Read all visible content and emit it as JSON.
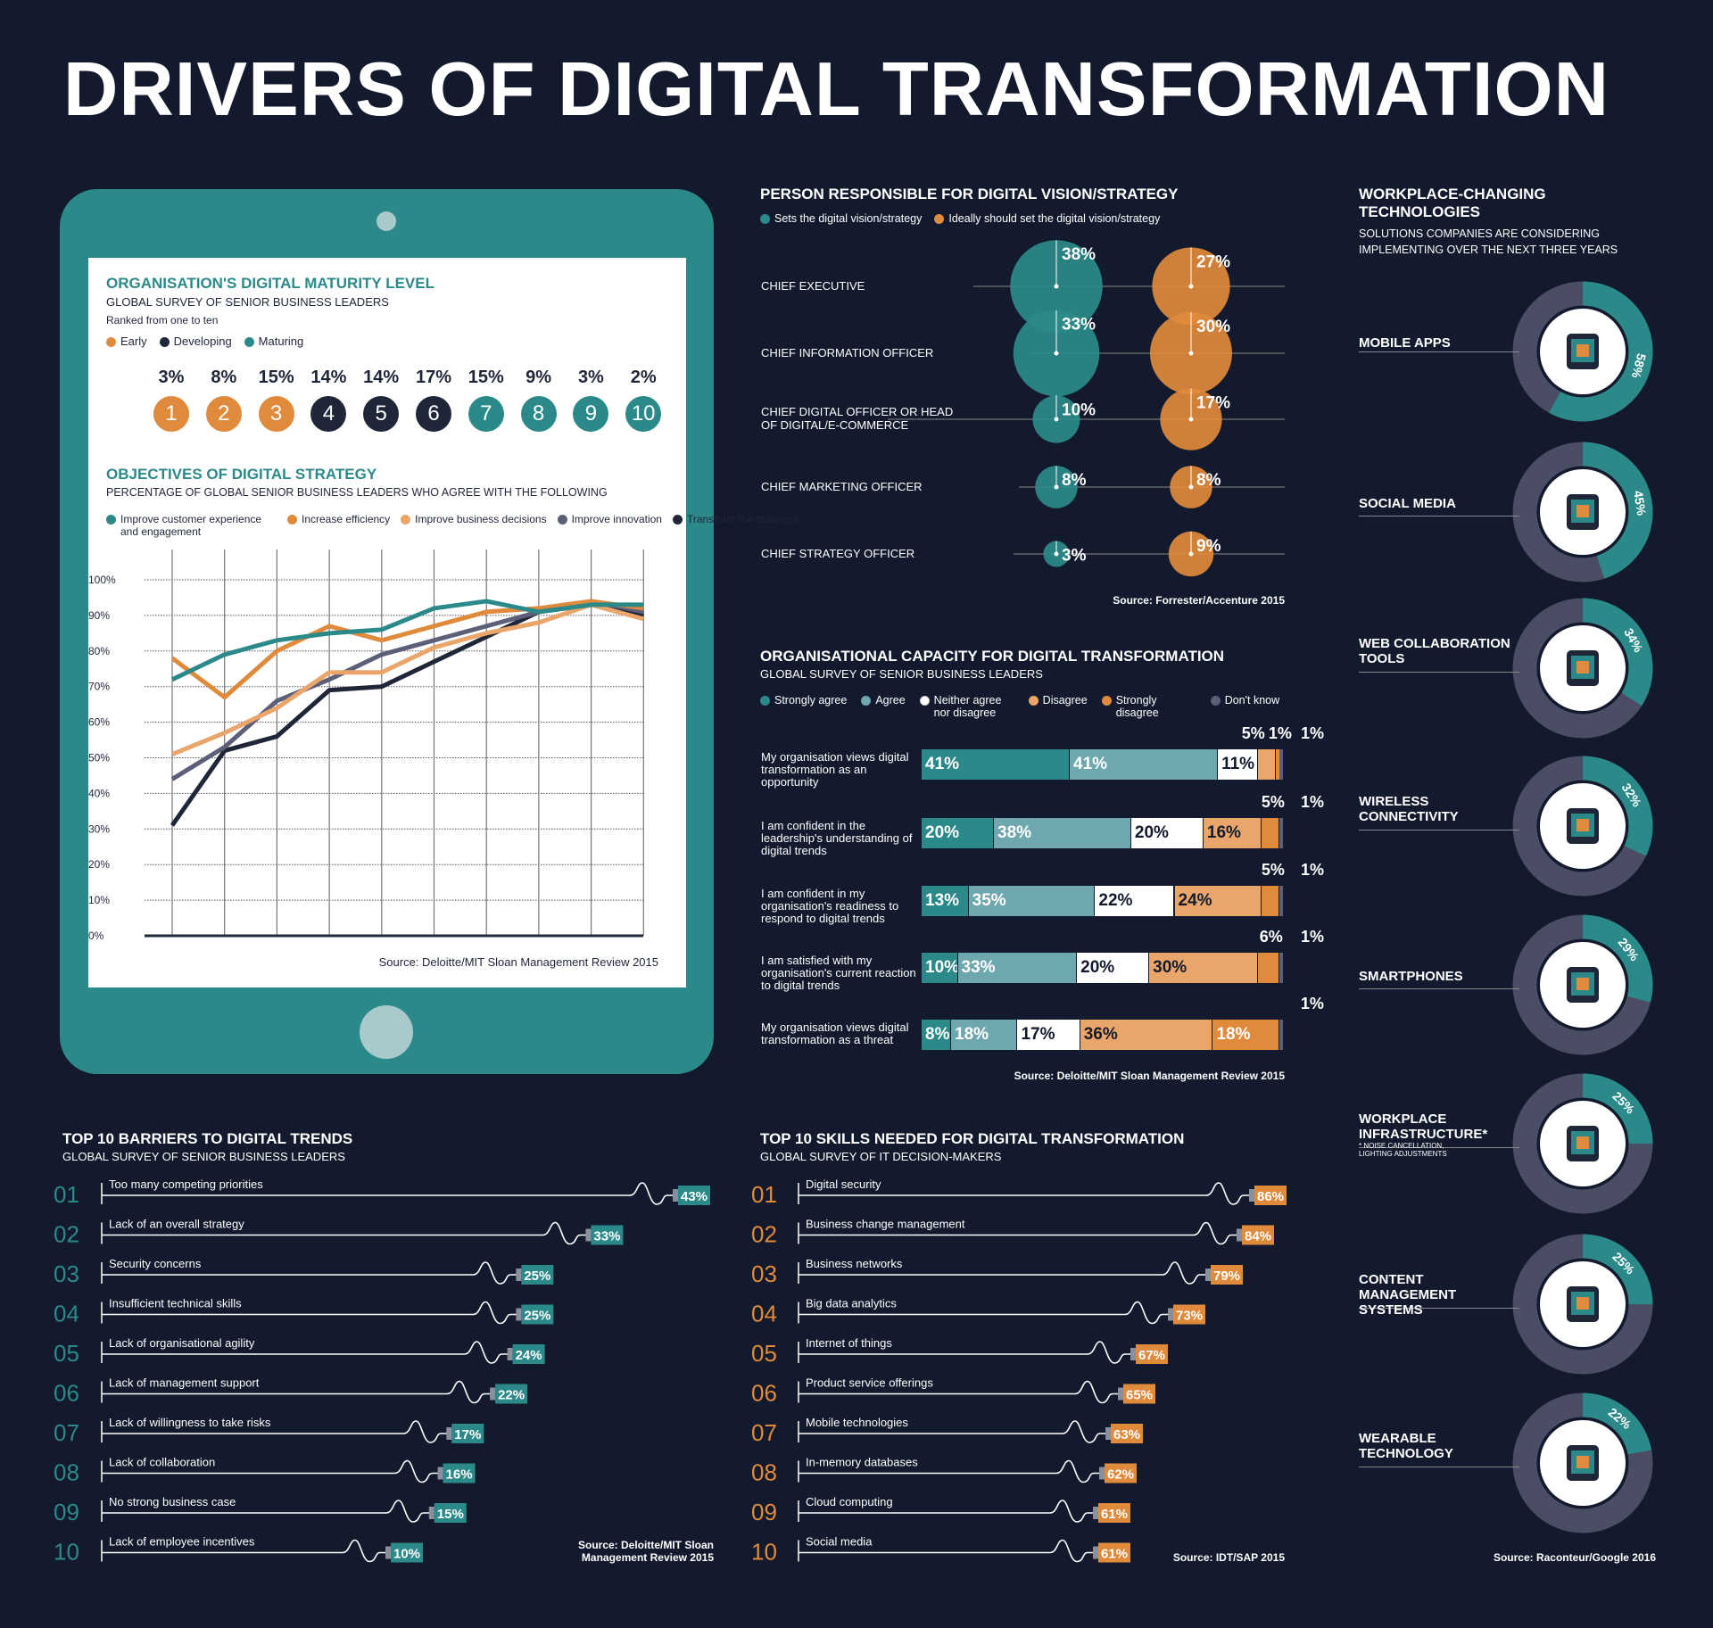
{
  "title": "DRIVERS OF DIGITAL TRANSFORMATION",
  "colors": {
    "background": "#131a2d",
    "teal": "#2b8a89",
    "orange": "#e08a3c",
    "light_orange": "#eaa66a",
    "light_teal": "#6fa7ae",
    "gray": "#5c5f78",
    "navy": "#1f2638"
  },
  "maturity": {
    "title": "ORGANISATION'S DIGITAL MATURITY LEVEL",
    "subtitle": "GLOBAL SURVEY OF SENIOR BUSINESS LEADERS",
    "note": "Ranked from one to ten",
    "legend": [
      {
        "label": "Early",
        "color": "#e08a3c"
      },
      {
        "label": "Developing",
        "color": "#1f2638"
      },
      {
        "label": "Maturing",
        "color": "#2b8a89"
      }
    ],
    "levels": [
      {
        "n": "1",
        "pct": "3%",
        "g": 0
      },
      {
        "n": "2",
        "pct": "8%",
        "g": 0
      },
      {
        "n": "3",
        "pct": "15%",
        "g": 0
      },
      {
        "n": "4",
        "pct": "14%",
        "g": 1
      },
      {
        "n": "5",
        "pct": "14%",
        "g": 1
      },
      {
        "n": "6",
        "pct": "17%",
        "g": 1
      },
      {
        "n": "7",
        "pct": "15%",
        "g": 2
      },
      {
        "n": "8",
        "pct": "9%",
        "g": 2
      },
      {
        "n": "9",
        "pct": "3%",
        "g": 2
      },
      {
        "n": "10",
        "pct": "2%",
        "g": 2
      }
    ]
  },
  "chart_data": [
    {
      "type": "line",
      "title": "OBJECTIVES OF DIGITAL STRATEGY",
      "subtitle": "PERCENTAGE OF GLOBAL SENIOR BUSINESS LEADERS WHO AGREE WITH THE FOLLOWING",
      "x": [
        1,
        2,
        3,
        4,
        5,
        6,
        7,
        8,
        9,
        10
      ],
      "ylim": [
        0,
        100
      ],
      "yticks": [
        "0%",
        "10%",
        "20%",
        "30%",
        "40%",
        "50%",
        "60%",
        "70%",
        "80%",
        "90%",
        "100%"
      ],
      "grid": true,
      "legend_position": "top",
      "series": [
        {
          "name": "Improve customer experience and engagement",
          "color": "#2b8a89",
          "values": [
            72,
            79,
            83,
            85,
            86,
            92,
            94,
            91,
            93,
            93
          ]
        },
        {
          "name": "Increase efficiency",
          "color": "#e08a3c",
          "values": [
            78,
            67,
            80,
            87,
            83,
            87,
            91,
            92,
            94,
            92
          ]
        },
        {
          "name": "Improve business decisions",
          "color": "#eaa66a",
          "values": [
            51,
            57,
            64,
            74,
            74,
            81,
            85,
            88,
            93,
            89
          ]
        },
        {
          "name": "Improve innovation",
          "color": "#5c5f78",
          "values": [
            44,
            53,
            66,
            72,
            79,
            83,
            87,
            91,
            94,
            91
          ]
        },
        {
          "name": "Transform the business",
          "color": "#1f2638",
          "values": [
            31,
            52,
            56,
            69,
            70,
            77,
            84,
            91,
            93,
            90
          ]
        }
      ],
      "source": "Source: Deloitte/MIT Sloan Management Review 2015"
    },
    {
      "type": "scatter",
      "title": "PERSON RESPONSIBLE FOR DIGITAL VISION/STRATEGY",
      "series_names": [
        "Sets the digital vision/strategy",
        "Ideally should set the digital vision/strategy"
      ],
      "rows": [
        {
          "label": "CHIEF EXECUTIVE",
          "a": 38,
          "b": 27
        },
        {
          "label": "CHIEF INFORMATION OFFICER",
          "a": 33,
          "b": 30
        },
        {
          "label": "CHIEF DIGITAL OFFICER OR HEAD OF DIGITAL/E-COMMERCE",
          "a": 10,
          "b": 17
        },
        {
          "label": "CHIEF MARKETING OFFICER",
          "a": 8,
          "b": 8
        },
        {
          "label": "CHIEF STRATEGY OFFICER",
          "a": 3,
          "b": 9
        }
      ],
      "source": "Source: Forrester/Accenture 2015"
    },
    {
      "type": "bar",
      "stacked": true,
      "title": "ORGANISATIONAL CAPACITY FOR DIGITAL TRANSFORMATION",
      "subtitle": "GLOBAL SURVEY OF SENIOR BUSINESS LEADERS",
      "legend": [
        {
          "label": "Strongly agree",
          "color": "#2b8a89"
        },
        {
          "label": "Agree",
          "color": "#6fa7ae"
        },
        {
          "label": "Neither agree nor disagree",
          "color": "#ffffff"
        },
        {
          "label": "Disagree",
          "color": "#eaa66a"
        },
        {
          "label": "Strongly disagree",
          "color": "#e08a3c"
        },
        {
          "label": "Don't know",
          "color": "#5c5f78"
        }
      ],
      "rows": [
        {
          "label": "My organisation views digital transformation as an opportunity",
          "values": [
            41,
            41,
            11,
            5,
            1,
            1
          ]
        },
        {
          "label": "I am confident in the leadership's understanding of digital trends",
          "values": [
            20,
            38,
            20,
            16,
            5,
            1
          ]
        },
        {
          "label": "I am confident in my organisation's readiness to respond to digital trends",
          "values": [
            13,
            35,
            22,
            24,
            5,
            1
          ]
        },
        {
          "label": "I am satisfied with my organisation's current reaction to digital trends",
          "values": [
            10,
            33,
            20,
            30,
            6,
            1
          ]
        },
        {
          "label": "My organisation views digital transformation as a threat",
          "values": [
            8,
            18,
            17,
            36,
            18,
            1
          ]
        }
      ],
      "source": "Source: Deloitte/MIT Sloan Management Review 2015"
    },
    {
      "type": "bar",
      "title": "TOP 10 BARRIERS TO DIGITAL TRENDS",
      "subtitle": "GLOBAL SURVEY OF SENIOR BUSINESS LEADERS",
      "rows": [
        {
          "n": "01",
          "label": "Too many competing priorities",
          "v": 43
        },
        {
          "n": "02",
          "label": "Lack of an overall strategy",
          "v": 33
        },
        {
          "n": "03",
          "label": "Security concerns",
          "v": 25
        },
        {
          "n": "04",
          "label": "Insufficient technical skills",
          "v": 25
        },
        {
          "n": "05",
          "label": "Lack of organisational agility",
          "v": 24
        },
        {
          "n": "06",
          "label": "Lack of management support",
          "v": 22
        },
        {
          "n": "07",
          "label": "Lack of willingness to take risks",
          "v": 17
        },
        {
          "n": "08",
          "label": "Lack of collaboration",
          "v": 16
        },
        {
          "n": "09",
          "label": "No strong business case",
          "v": 15
        },
        {
          "n": "10",
          "label": "Lack of employee incentives",
          "v": 10
        }
      ],
      "source": "Source: Deloitte/MIT Sloan Management Review 2015"
    },
    {
      "type": "bar",
      "title": "TOP 10 SKILLS NEEDED FOR DIGITAL TRANSFORMATION",
      "subtitle": "GLOBAL SURVEY OF IT DECISION-MAKERS",
      "rows": [
        {
          "n": "01",
          "label": "Digital security",
          "v": 86
        },
        {
          "n": "02",
          "label": "Business change management",
          "v": 84
        },
        {
          "n": "03",
          "label": "Business networks",
          "v": 79
        },
        {
          "n": "04",
          "label": "Big data analytics",
          "v": 73
        },
        {
          "n": "05",
          "label": "Internet of things",
          "v": 67
        },
        {
          "n": "06",
          "label": "Product service offerings",
          "v": 65
        },
        {
          "n": "07",
          "label": "Mobile technologies",
          "v": 63
        },
        {
          "n": "08",
          "label": "In-memory databases",
          "v": 62
        },
        {
          "n": "09",
          "label": "Cloud computing",
          "v": 61
        },
        {
          "n": "10",
          "label": "Social media",
          "v": 61
        }
      ],
      "source": "Source: IDT/SAP 2015"
    },
    {
      "type": "pie",
      "title": "WORKPLACE-CHANGING TECHNOLOGIES",
      "subtitle": "SOLUTIONS COMPANIES ARE CONSIDERING IMPLEMENTING OVER THE NEXT THREE YEARS",
      "rows": [
        {
          "label": "MOBILE APPS",
          "v": 58,
          "icon": "tablet-icon"
        },
        {
          "label": "SOCIAL MEDIA",
          "v": 45,
          "icon": "thumbs-up-icon"
        },
        {
          "label": "WEB COLLABORATION TOOLS",
          "v": 34,
          "icon": "laptop-icon"
        },
        {
          "label": "WIRELESS CONNECTIVITY",
          "v": 32,
          "icon": "router-icon"
        },
        {
          "label": "SMARTPHONES",
          "v": 29,
          "icon": "smartphone-icon"
        },
        {
          "label": "WORKPLACE INFRASTRUCTURE*",
          "note": "* NOISE CANCELLATION, LIGHTING ADJUSTMENTS",
          "v": 25,
          "icon": "desk-icon"
        },
        {
          "label": "CONTENT MANAGEMENT SYSTEMS",
          "v": 25,
          "icon": "flowchart-icon"
        },
        {
          "label": "WEARABLE TECHNOLOGY",
          "v": 22,
          "icon": "smartwatch-icon"
        }
      ],
      "source": "Source: Raconteur/Google 2016"
    }
  ]
}
